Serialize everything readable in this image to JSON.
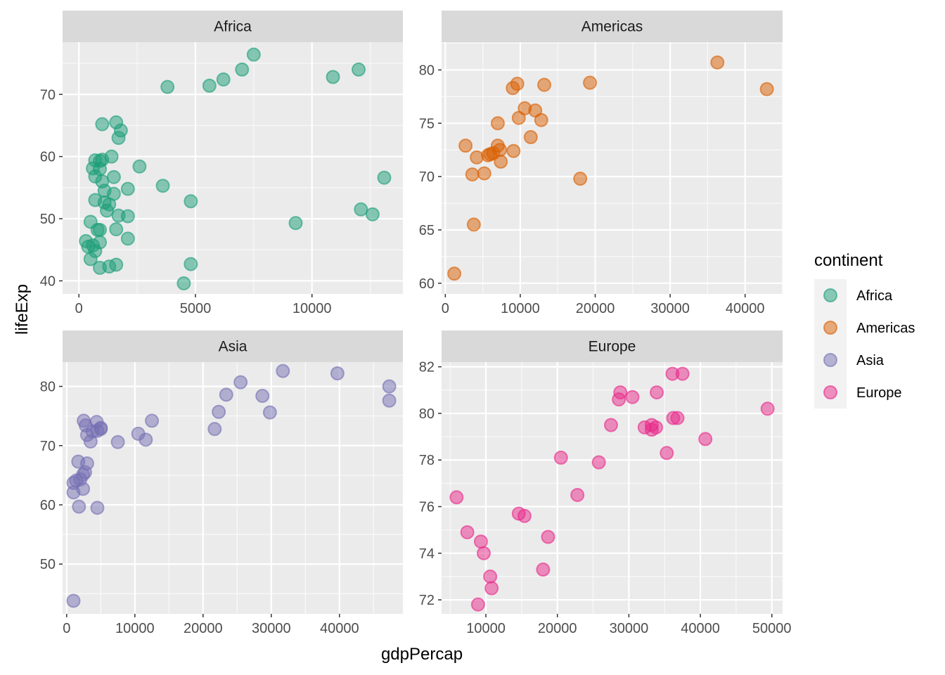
{
  "chart_data": {
    "type": "scatter",
    "layout": "facet-wrap 2x2, free scales",
    "xlabel": "gdpPercap",
    "ylabel": "lifeExp",
    "legend": {
      "title": "continent",
      "position": "right"
    },
    "panel_background": "#ebebeb",
    "strip_background": "#d9d9d9",
    "gridlines": true,
    "panels": [
      {
        "name": "Africa",
        "color": "#1b9e77",
        "xlim": [
          -700,
          13900
        ],
        "ylim": [
          37.9,
          78.4
        ],
        "xticks": [
          0,
          5000,
          10000
        ],
        "yticks": [
          40,
          50,
          60,
          70
        ],
        "points": [
          [
            7500,
            76.4
          ],
          [
            3800,
            71.2
          ],
          [
            5600,
            71.4
          ],
          [
            6200,
            72.4
          ],
          [
            7000,
            74.0
          ],
          [
            10900,
            72.8
          ],
          [
            12000,
            74.0
          ],
          [
            13100,
            56.6
          ],
          [
            12100,
            51.5
          ],
          [
            12600,
            50.7
          ],
          [
            9300,
            49.3
          ],
          [
            4800,
            52.8
          ],
          [
            4800,
            42.7
          ],
          [
            4500,
            39.6
          ],
          [
            3600,
            55.3
          ],
          [
            2600,
            58.4
          ],
          [
            2100,
            54.8
          ],
          [
            2100,
            50.4
          ],
          [
            2100,
            46.8
          ],
          [
            1800,
            64.2
          ],
          [
            1700,
            63.0
          ],
          [
            1600,
            65.5
          ],
          [
            1400,
            60.0
          ],
          [
            1500,
            56.7
          ],
          [
            1500,
            54.0
          ],
          [
            1600,
            48.3
          ],
          [
            1600,
            42.6
          ],
          [
            1700,
            50.5
          ],
          [
            1300,
            52.3
          ],
          [
            1200,
            51.3
          ],
          [
            1300,
            42.3
          ],
          [
            1000,
            65.2
          ],
          [
            1000,
            59.5
          ],
          [
            900,
            59.3
          ],
          [
            900,
            58.0
          ],
          [
            1000,
            56.0
          ],
          [
            1100,
            54.5
          ],
          [
            1100,
            52.6
          ],
          [
            700,
            59.4
          ],
          [
            600,
            58.1
          ],
          [
            700,
            56.8
          ],
          [
            700,
            53.0
          ],
          [
            500,
            49.5
          ],
          [
            900,
            48.2
          ],
          [
            800,
            48.2
          ],
          [
            900,
            46.2
          ],
          [
            700,
            44.8
          ],
          [
            600,
            45.7
          ],
          [
            300,
            46.4
          ],
          [
            400,
            45.5
          ],
          [
            500,
            43.5
          ],
          [
            900,
            42.1
          ]
        ]
      },
      {
        "name": "Americas",
        "color": "#d95f02",
        "xlim": [
          -500,
          45000
        ],
        "ylim": [
          59.0,
          82.6
        ],
        "xticks": [
          0,
          10000,
          20000,
          30000,
          40000
        ],
        "yticks": [
          60,
          65,
          70,
          75,
          80
        ],
        "points": [
          [
            1200,
            60.9
          ],
          [
            3800,
            65.5
          ],
          [
            3600,
            70.2
          ],
          [
            5200,
            70.3
          ],
          [
            2700,
            72.9
          ],
          [
            4200,
            71.8
          ],
          [
            5700,
            72.0
          ],
          [
            6000,
            72.1
          ],
          [
            6400,
            72.2
          ],
          [
            7000,
            72.9
          ],
          [
            7300,
            72.5
          ],
          [
            7400,
            71.4
          ],
          [
            7000,
            75.0
          ],
          [
            9100,
            72.4
          ],
          [
            9000,
            78.3
          ],
          [
            9600,
            78.7
          ],
          [
            9800,
            75.5
          ],
          [
            10600,
            76.4
          ],
          [
            11400,
            73.7
          ],
          [
            12000,
            76.2
          ],
          [
            12800,
            75.3
          ],
          [
            13200,
            78.6
          ],
          [
            18000,
            69.8
          ],
          [
            19300,
            78.8
          ],
          [
            36300,
            80.7
          ],
          [
            42900,
            78.2
          ]
        ]
      },
      {
        "name": "Asia",
        "color": "#7570b3",
        "xlim": [
          -600,
          49300
        ],
        "ylim": [
          41.6,
          84.1
        ],
        "xticks": [
          0,
          10000,
          20000,
          30000,
          40000
        ],
        "yticks": [
          50,
          60,
          70,
          80
        ],
        "points": [
          [
            1000,
            43.8
          ],
          [
            1000,
            62.1
          ],
          [
            1000,
            63.7
          ],
          [
            1400,
            64.1
          ],
          [
            2000,
            64.3
          ],
          [
            2400,
            62.7
          ],
          [
            2400,
            65.1
          ],
          [
            2700,
            65.5
          ],
          [
            3000,
            67.0
          ],
          [
            1700,
            67.3
          ],
          [
            1800,
            59.7
          ],
          [
            4500,
            59.5
          ],
          [
            3500,
            70.7
          ],
          [
            3000,
            71.8
          ],
          [
            2500,
            74.2
          ],
          [
            2800,
            73.4
          ],
          [
            3800,
            72.4
          ],
          [
            4400,
            74.0
          ],
          [
            4500,
            72.5
          ],
          [
            5000,
            73.0
          ],
          [
            5000,
            72.8
          ],
          [
            7500,
            70.6
          ],
          [
            10500,
            72.0
          ],
          [
            11600,
            71.0
          ],
          [
            12500,
            74.2
          ],
          [
            21700,
            72.8
          ],
          [
            22300,
            75.7
          ],
          [
            23400,
            78.6
          ],
          [
            25500,
            80.7
          ],
          [
            28700,
            78.4
          ],
          [
            29800,
            75.6
          ],
          [
            31700,
            82.6
          ],
          [
            39700,
            82.2
          ],
          [
            47300,
            80.0
          ],
          [
            47300,
            77.6
          ]
        ]
      },
      {
        "name": "Europe",
        "color": "#e7298a",
        "xlim": [
          3800,
          51500
        ],
        "ylim": [
          71.4,
          82.2
        ],
        "xticks": [
          10000,
          20000,
          30000,
          40000,
          50000
        ],
        "yticks": [
          72,
          74,
          76,
          78,
          80,
          82
        ],
        "points": [
          [
            5900,
            76.4
          ],
          [
            7400,
            74.9
          ],
          [
            8900,
            71.8
          ],
          [
            9300,
            74.5
          ],
          [
            9700,
            74.0
          ],
          [
            10600,
            73.0
          ],
          [
            10800,
            72.5
          ],
          [
            14600,
            75.7
          ],
          [
            15400,
            75.6
          ],
          [
            18000,
            73.3
          ],
          [
            18700,
            74.7
          ],
          [
            20500,
            78.1
          ],
          [
            22800,
            76.5
          ],
          [
            25800,
            77.9
          ],
          [
            27500,
            79.5
          ],
          [
            28600,
            80.6
          ],
          [
            28800,
            80.9
          ],
          [
            30500,
            80.7
          ],
          [
            32200,
            79.4
          ],
          [
            33200,
            79.3
          ],
          [
            33200,
            79.5
          ],
          [
            33800,
            79.4
          ],
          [
            33900,
            80.9
          ],
          [
            35300,
            78.3
          ],
          [
            36100,
            81.7
          ],
          [
            36200,
            79.8
          ],
          [
            36800,
            79.8
          ],
          [
            37500,
            81.7
          ],
          [
            40700,
            78.9
          ],
          [
            49400,
            80.2
          ]
        ]
      }
    ]
  }
}
